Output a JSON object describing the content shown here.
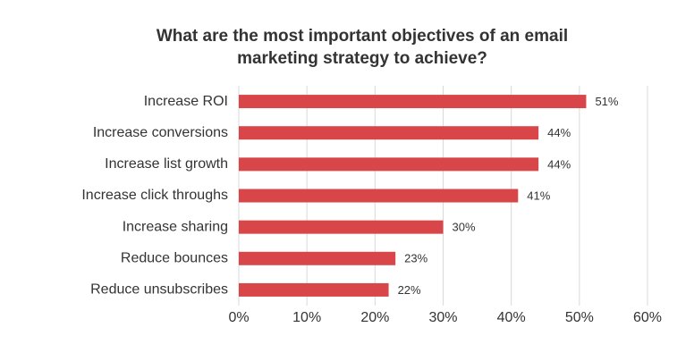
{
  "chart_data": {
    "type": "hbar",
    "title": [
      "What are the most important objectives of an email",
      "marketing strategy to achieve?"
    ],
    "categories": [
      "Increase ROI",
      "Increase conversions",
      "Increase list growth",
      "Increase click throughs",
      "Increase sharing",
      "Reduce bounces",
      "Reduce unsubscribes"
    ],
    "values": [
      51,
      44,
      44,
      41,
      30,
      23,
      22
    ],
    "value_labels": [
      "51%",
      "44%",
      "44%",
      "41%",
      "30%",
      "23%",
      "22%"
    ],
    "color": "#d9464a",
    "xlim": [
      0,
      60
    ],
    "xticks": [
      {
        "value": 0,
        "label": "0%"
      },
      {
        "value": 10,
        "label": "10%"
      },
      {
        "value": 20,
        "label": "20%"
      },
      {
        "value": 30,
        "label": "30%"
      },
      {
        "value": 40,
        "label": "40%"
      },
      {
        "value": 50,
        "label": "50%"
      },
      {
        "value": 60,
        "label": "60%"
      }
    ],
    "grid": true
  }
}
